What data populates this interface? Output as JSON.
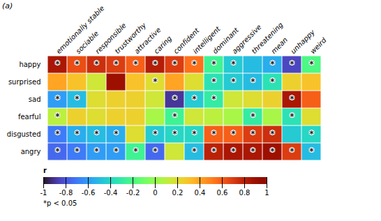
{
  "chart_data": {
    "type": "heatmap",
    "panel_label": "(a)",
    "footnote": "*p < 0.05",
    "rows": [
      "happy",
      "surprised",
      "sad",
      "fearful",
      "disgusted",
      "angry"
    ],
    "columns": [
      "emotionally stable",
      "sociable",
      "responsible",
      "trustworthy",
      "attractive",
      "caring",
      "confident",
      "intelligent",
      "dominant",
      "aggressive",
      "threatening",
      "mean",
      "unhappy",
      "weird"
    ],
    "values": [
      [
        0.85,
        0.65,
        0.75,
        0.7,
        0.6,
        0.82,
        0.7,
        0.55,
        -0.25,
        -0.45,
        -0.5,
        -0.55,
        -0.85,
        -0.2
      ],
      [
        0.4,
        0.3,
        0.15,
        0.9,
        0.3,
        0.2,
        0.4,
        0.2,
        -0.35,
        -0.45,
        -0.5,
        -0.35,
        0.25,
        0.3
      ],
      [
        -0.6,
        -0.5,
        0.2,
        0.25,
        0.25,
        0.15,
        -0.9,
        -0.45,
        -0.3,
        0.15,
        0.2,
        0.25,
        0.85,
        0.6
      ],
      [
        0.1,
        0.25,
        0.2,
        0.25,
        0.25,
        0.05,
        -0.25,
        0.15,
        0.1,
        0.05,
        -0.3,
        0.05,
        -0.35,
        0.2
      ],
      [
        -0.7,
        -0.55,
        -0.5,
        -0.55,
        0.2,
        -0.45,
        -0.4,
        -0.4,
        0.6,
        0.6,
        0.7,
        0.75,
        -0.45,
        -0.4
      ],
      [
        -0.75,
        -0.7,
        -0.6,
        -0.6,
        -0.25,
        -0.75,
        0.15,
        -0.5,
        0.8,
        0.85,
        0.85,
        0.9,
        0.7,
        -0.5
      ]
    ],
    "significant": [
      [
        1,
        1,
        1,
        1,
        1,
        1,
        1,
        1,
        1,
        1,
        0,
        1,
        1,
        1
      ],
      [
        0,
        0,
        0,
        0,
        0,
        1,
        0,
        0,
        1,
        1,
        1,
        1,
        0,
        0
      ],
      [
        1,
        1,
        0,
        0,
        0,
        0,
        1,
        1,
        1,
        0,
        0,
        0,
        1,
        0
      ],
      [
        1,
        0,
        0,
        0,
        0,
        0,
        1,
        0,
        0,
        0,
        1,
        0,
        1,
        0
      ],
      [
        1,
        1,
        1,
        1,
        0,
        1,
        1,
        1,
        1,
        1,
        1,
        1,
        0,
        1
      ],
      [
        1,
        1,
        1,
        1,
        1,
        1,
        0,
        1,
        1,
        1,
        1,
        1,
        1,
        1
      ]
    ],
    "significance_marker": "*",
    "color_range": [
      -1,
      1
    ],
    "colorbar_ticks": [
      1,
      0.8,
      0.6,
      0.4,
      0.2,
      0,
      -0.2,
      -0.4,
      -0.6,
      -0.8,
      -1
    ],
    "colorbar_label": "r"
  }
}
